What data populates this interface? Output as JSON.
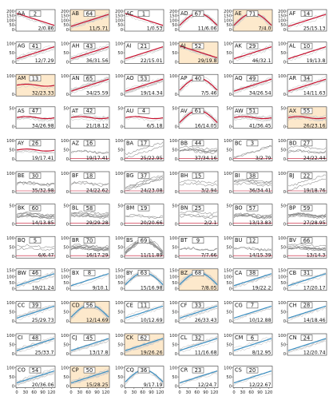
{
  "chart_data": {
    "type": "line",
    "layout": "small-multiples grid, 6 columns",
    "x_ticks": [
      0,
      30,
      60,
      90,
      120
    ],
    "colors": {
      "trace_gray": "#8a8a8a",
      "trace_light": "#c9c9c9",
      "red": "#c8102e",
      "blue": "#3b8fc2",
      "highlight_bg": "#fde9cc"
    },
    "rows": [
      {
        "y_ticks": [
          0,
          50,
          100,
          150,
          200
        ],
        "panels": [
          {
            "id": "AA",
            "count": 2,
            "ratio": "2/0.86",
            "style": "red",
            "hl": false,
            "shape": "decay"
          },
          {
            "id": "AB",
            "count": 64,
            "ratio": "11/5.71",
            "style": "red",
            "hl": true,
            "shape": "rise"
          },
          {
            "id": "AC",
            "count": 1,
            "ratio": "1/0.53",
            "style": "red",
            "hl": false,
            "shape": "decay"
          },
          {
            "id": "AD",
            "count": 67,
            "ratio": "11/6.06",
            "style": "red",
            "hl": false,
            "shape": "hump"
          },
          {
            "id": "AE",
            "count": 71,
            "ratio": "7/4.0",
            "style": "red",
            "hl": true,
            "shape": "hump"
          },
          {
            "id": "AF",
            "count": 14,
            "ratio": "25/15.13",
            "style": "red",
            "hl": false,
            "shape": "rise"
          }
        ]
      },
      {
        "y_ticks": [
          0,
          50,
          100
        ],
        "panels": [
          {
            "id": "AG",
            "count": 41,
            "ratio": "12/7.29",
            "style": "red",
            "hl": false,
            "shape": "rise"
          },
          {
            "id": "AH",
            "count": 43,
            "ratio": "36/31.56",
            "style": "red",
            "hl": false,
            "shape": "rise"
          },
          {
            "id": "AI",
            "count": 21,
            "ratio": "22/15.01",
            "style": "red",
            "hl": false,
            "shape": "rise"
          },
          {
            "id": "AJ",
            "count": 52,
            "ratio": "29/19.8",
            "style": "red",
            "hl": true,
            "shape": "decay"
          },
          {
            "id": "AK",
            "count": 29,
            "ratio": "46/32.1",
            "style": "red",
            "hl": false,
            "shape": "rise"
          },
          {
            "id": "AL",
            "count": 10,
            "ratio": "19/13.8",
            "style": "red",
            "hl": false,
            "shape": "rise"
          }
        ]
      },
      {
        "y_ticks": [
          0,
          100
        ],
        "panels": [
          {
            "id": "AM",
            "count": 13,
            "ratio": "32/23.33",
            "style": "red",
            "hl": true,
            "shape": "flat"
          },
          {
            "id": "AN",
            "count": 65,
            "ratio": "34/25.59",
            "style": "red",
            "hl": false,
            "shape": "rise"
          },
          {
            "id": "AO",
            "count": 53,
            "ratio": "19/14.34",
            "style": "red",
            "hl": false,
            "shape": "rise"
          },
          {
            "id": "AP",
            "count": 40,
            "ratio": "7/5.46",
            "style": "red",
            "hl": false,
            "shape": "hump"
          },
          {
            "id": "AQ",
            "count": 49,
            "ratio": "34/26.54",
            "style": "red",
            "hl": false,
            "shape": "rise"
          },
          {
            "id": "AR",
            "count": 34,
            "ratio": "14/11.63",
            "style": "red",
            "hl": false,
            "shape": "rise"
          }
        ]
      },
      {
        "y_ticks": [
          0,
          50
        ],
        "panels": [
          {
            "id": "AS",
            "count": 47,
            "ratio": "34/26.98",
            "style": "red",
            "hl": false,
            "shape": "flat"
          },
          {
            "id": "AT",
            "count": 42,
            "ratio": "21/18.12",
            "style": "red",
            "hl": false,
            "shape": "flat"
          },
          {
            "id": "AU",
            "count": 4,
            "ratio": "6/5.18",
            "style": "red",
            "hl": false,
            "shape": "flat"
          },
          {
            "id": "AV",
            "count": 61,
            "ratio": "16/14.05",
            "style": "red",
            "hl": false,
            "shape": "hump"
          },
          {
            "id": "AW",
            "count": 51,
            "ratio": "41/36.45",
            "style": "red",
            "hl": false,
            "shape": "flat"
          },
          {
            "id": "AX",
            "count": 55,
            "ratio": "26/23.16",
            "style": "red",
            "hl": true,
            "shape": "flat"
          }
        ]
      },
      {
        "y_ticks": [
          0,
          50,
          100
        ],
        "panels": [
          {
            "id": "AY",
            "count": 26,
            "ratio": "19/17.41",
            "style": "red",
            "hl": false,
            "shape": "flat"
          },
          {
            "id": "AZ",
            "count": 16,
            "ratio": "19/17.41",
            "style": "gray",
            "hl": false,
            "shape": "flat"
          },
          {
            "id": "BA",
            "count": 17,
            "ratio": "25/22.95",
            "style": "gray",
            "hl": false,
            "shape": "rise"
          },
          {
            "id": "BB",
            "count": 44,
            "ratio": "37/34.16",
            "style": "gray",
            "hl": false,
            "shape": "flat"
          },
          {
            "id": "BC",
            "count": 3,
            "ratio": "3/2.79",
            "style": "gray",
            "hl": false,
            "shape": "rise"
          },
          {
            "id": "BD",
            "count": 27,
            "ratio": "24/22.44",
            "style": "gray",
            "hl": false,
            "shape": "flat"
          }
        ]
      },
      {
        "y_ticks": [
          0,
          100
        ],
        "panels": [
          {
            "id": "BE",
            "count": 30,
            "ratio": "35/32.98",
            "style": "gray",
            "hl": false,
            "shape": "flat"
          },
          {
            "id": "BF",
            "count": 18,
            "ratio": "24/22.62",
            "style": "gray",
            "hl": false,
            "shape": "flat"
          },
          {
            "id": "BG",
            "count": 37,
            "ratio": "24/23.08",
            "style": "gray",
            "hl": false,
            "shape": "rise"
          },
          {
            "id": "BH",
            "count": 15,
            "ratio": "3/2.94",
            "style": "gray",
            "hl": false,
            "shape": "flat"
          },
          {
            "id": "BI",
            "count": 38,
            "ratio": "36/34.41",
            "style": "gray",
            "hl": false,
            "shape": "flat"
          },
          {
            "id": "BJ",
            "count": 22,
            "ratio": "19/18.76",
            "style": "gray",
            "hl": false,
            "shape": "rise"
          }
        ]
      },
      {
        "y_ticks": [
          0,
          50
        ],
        "panels": [
          {
            "id": "BK",
            "count": 60,
            "ratio": "14/13.85",
            "style": "gray",
            "hl": false,
            "shape": "flat"
          },
          {
            "id": "BL",
            "count": 58,
            "ratio": "29/29.28",
            "style": "gray",
            "hl": false,
            "shape": "flat"
          },
          {
            "id": "BM",
            "count": 19,
            "ratio": "20/20.66",
            "style": "gray",
            "hl": false,
            "shape": "flat"
          },
          {
            "id": "BN",
            "count": 25,
            "ratio": "2/2.1",
            "style": "gray",
            "hl": false,
            "shape": "flat"
          },
          {
            "id": "BO",
            "count": 57,
            "ratio": "13/13.83",
            "style": "gray",
            "hl": false,
            "shape": "flat"
          },
          {
            "id": "BP",
            "count": 59,
            "ratio": "27/28.95",
            "style": "gray",
            "hl": false,
            "shape": "flat"
          }
        ]
      },
      {
        "y_ticks": [
          0,
          50,
          100
        ],
        "panels": [
          {
            "id": "BQ",
            "count": 5,
            "ratio": "6/6.47",
            "style": "gray",
            "hl": false,
            "shape": "flat"
          },
          {
            "id": "BR",
            "count": 70,
            "ratio": "16/17.29",
            "style": "gray",
            "hl": false,
            "shape": "flat"
          },
          {
            "id": "BS",
            "count": 69,
            "ratio": "11/11.89",
            "style": "gray",
            "hl": false,
            "shape": "hump"
          },
          {
            "id": "BT",
            "count": 9,
            "ratio": "7/7.66",
            "style": "gray",
            "hl": false,
            "shape": "flat"
          },
          {
            "id": "BU",
            "count": 12,
            "ratio": "14/15.39",
            "style": "gray",
            "hl": false,
            "shape": "flat"
          },
          {
            "id": "BV",
            "count": 66,
            "ratio": "13/14.3",
            "style": "gray",
            "hl": false,
            "shape": "flat"
          }
        ]
      },
      {
        "y_ticks": [
          0,
          50,
          100,
          150
        ],
        "panels": [
          {
            "id": "BW",
            "count": 46,
            "ratio": "19/21.24",
            "style": "blue",
            "hl": false,
            "shape": "rise"
          },
          {
            "id": "BX",
            "count": 8,
            "ratio": "9/10.1",
            "style": "blue",
            "hl": false,
            "shape": "rise"
          },
          {
            "id": "BY",
            "count": 63,
            "ratio": "15/16.98",
            "style": "blue",
            "hl": false,
            "shape": "hump"
          },
          {
            "id": "BZ",
            "count": 68,
            "ratio": "7/8.05",
            "style": "blue",
            "hl": true,
            "shape": "hump"
          },
          {
            "id": "CA",
            "count": 38,
            "ratio": "19/22.2",
            "style": "blue",
            "hl": false,
            "shape": "rise"
          },
          {
            "id": "CB",
            "count": 31,
            "ratio": "17/20.17",
            "style": "blue",
            "hl": false,
            "shape": "rise"
          }
        ]
      },
      {
        "y_ticks": [
          0,
          50,
          100
        ],
        "panels": [
          {
            "id": "CC",
            "count": 39,
            "ratio": "25/29.73",
            "style": "blue",
            "hl": false,
            "shape": "rise"
          },
          {
            "id": "CD",
            "count": 56,
            "ratio": "12/14.69",
            "style": "blue",
            "hl": true,
            "shape": "hump"
          },
          {
            "id": "CE",
            "count": 11,
            "ratio": "10/12.69",
            "style": "blue",
            "hl": false,
            "shape": "rise"
          },
          {
            "id": "CF",
            "count": 33,
            "ratio": "26/33.43",
            "style": "blue",
            "hl": false,
            "shape": "rise"
          },
          {
            "id": "CG",
            "count": 7,
            "ratio": "10/12.88",
            "style": "blue",
            "hl": false,
            "shape": "rise"
          },
          {
            "id": "CH",
            "count": 28,
            "ratio": "14/18.46",
            "style": "blue",
            "hl": false,
            "shape": "rise"
          }
        ]
      },
      {
        "y_ticks": [
          0,
          50,
          100
        ],
        "panels": [
          {
            "id": "CI",
            "count": 48,
            "ratio": "25/33.7",
            "style": "blue",
            "hl": false,
            "shape": "rise"
          },
          {
            "id": "CJ",
            "count": 45,
            "ratio": "13/17.8",
            "style": "blue",
            "hl": false,
            "shape": "rise"
          },
          {
            "id": "CK",
            "count": 62,
            "ratio": "19/26.26",
            "style": "blue",
            "hl": true,
            "shape": "rise"
          },
          {
            "id": "CL",
            "count": 32,
            "ratio": "11/16.68",
            "style": "blue",
            "hl": false,
            "shape": "rise"
          },
          {
            "id": "CM",
            "count": 6,
            "ratio": "8/12.95",
            "style": "blue",
            "hl": false,
            "shape": "rise"
          },
          {
            "id": "CN",
            "count": 24,
            "ratio": "12/20.74",
            "style": "blue",
            "hl": false,
            "shape": "rise"
          }
        ]
      },
      {
        "y_ticks": [
          0,
          50,
          100
        ],
        "panels": [
          {
            "id": "CO",
            "count": 54,
            "ratio": "20/36.06",
            "style": "blue",
            "hl": false,
            "shape": "rise"
          },
          {
            "id": "CP",
            "count": 50,
            "ratio": "15/28.25",
            "style": "blue",
            "hl": true,
            "shape": "rise"
          },
          {
            "id": "CQ",
            "count": 36,
            "ratio": "9/17.19",
            "style": "blue",
            "hl": false,
            "shape": "hump"
          },
          {
            "id": "CR",
            "count": 23,
            "ratio": "12/24.7",
            "style": "blue",
            "hl": false,
            "shape": "rise"
          },
          {
            "id": "CS",
            "count": 20,
            "ratio": "12/22.67",
            "style": "blue",
            "hl": false,
            "shape": "rise"
          }
        ]
      }
    ]
  }
}
